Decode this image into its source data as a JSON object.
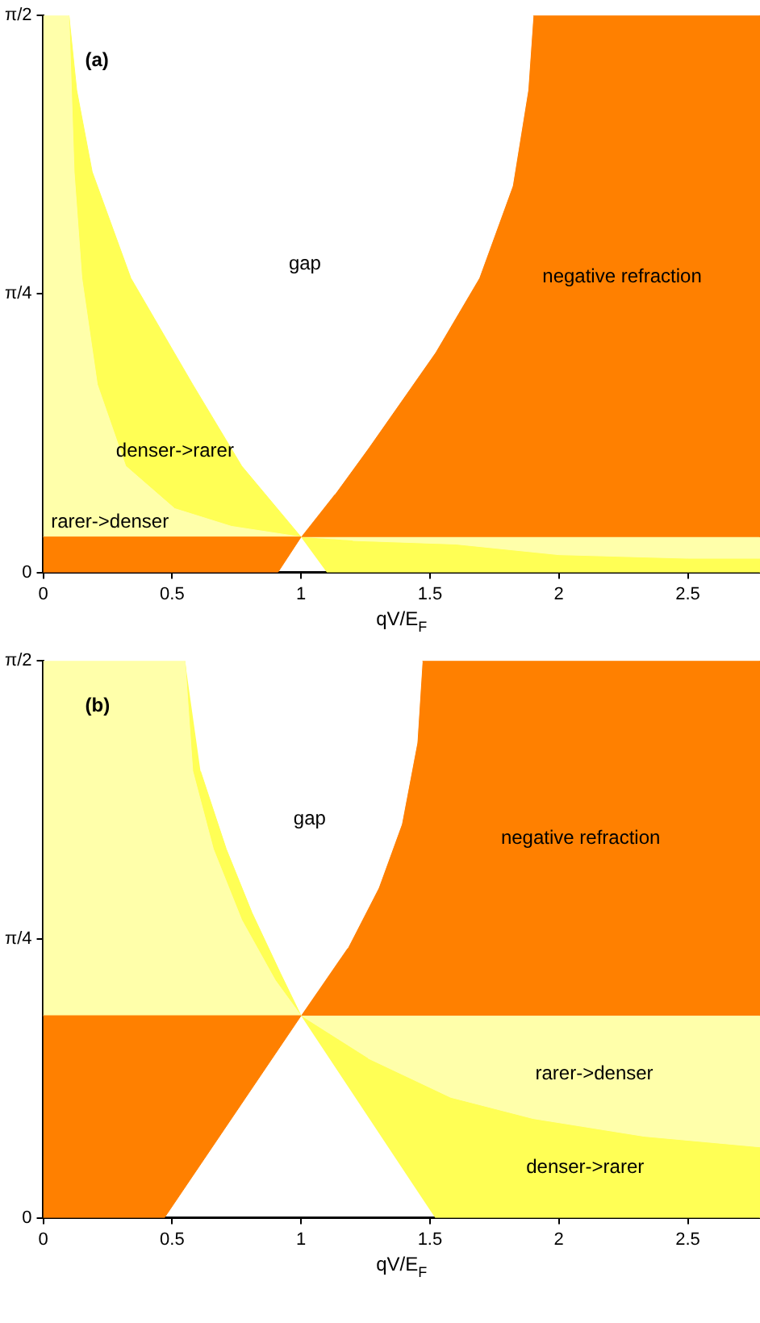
{
  "chart_data": [
    {
      "type": "area",
      "xlabel": "qV/E$_{F}$",
      "xlim": [
        0,
        2.78
      ],
      "ylim": [
        0,
        1.5708
      ],
      "xticks": [
        0,
        0.5,
        1,
        1.5,
        2,
        2.5
      ],
      "yticks": [
        {
          "value": 0,
          "label": "0"
        },
        {
          "value": 0.7854,
          "label": "π/4"
        },
        {
          "value": 1.5708,
          "label": "π/2"
        }
      ],
      "grid": false,
      "legend": false,
      "series": [
        {
          "color": "#ff8000",
          "x": [
            0,
            0.91,
            1,
            0
          ],
          "values": [
            0,
            0,
            0.1,
            0.1
          ]
        },
        {
          "name": "rarer->denser",
          "color": "#ffffaa",
          "x": [
            0,
            1,
            0.73,
            0.51,
            0.32,
            0.21,
            0.15,
            0.12,
            0.1,
            0
          ],
          "values": [
            0.1,
            0.1,
            0.13,
            0.18,
            0.3,
            0.53,
            0.83,
            1.13,
            1.57,
            1.57
          ]
        },
        {
          "name": "denser->rarer",
          "color": "#ffff55",
          "x": [
            0.1,
            0.12,
            0.15,
            0.21,
            0.32,
            0.51,
            0.73,
            1,
            0.77,
            0.58,
            0.34,
            0.19,
            0.13,
            0.1
          ],
          "values": [
            1.57,
            1.13,
            0.83,
            0.53,
            0.3,
            0.18,
            0.13,
            0.1,
            0.3,
            0.53,
            0.83,
            1.13,
            1.36,
            1.57
          ]
        },
        {
          "name": "gap",
          "color": "#ffffff",
          "x": [
            1,
            0.77,
            0.58,
            0.34,
            0.19,
            0.13,
            0.1,
            1.9,
            1.88,
            1.82,
            1.69,
            1.52,
            1.26,
            1.13
          ],
          "values": [
            0.1,
            0.3,
            0.53,
            0.83,
            1.13,
            1.36,
            1.57,
            1.57,
            1.36,
            1.09,
            0.83,
            0.62,
            0.35,
            0.22
          ]
        },
        {
          "name": "negative refraction",
          "color": "#ff8000",
          "x": [
            1,
            1.13,
            1.26,
            1.52,
            1.69,
            1.82,
            1.88,
            1.9,
            2.78,
            2.78
          ],
          "values": [
            0.1,
            0.22,
            0.35,
            0.62,
            0.83,
            1.09,
            1.36,
            1.57,
            1.57,
            0.1
          ]
        },
        {
          "color": "#ffffaa",
          "x": [
            1,
            2.78,
            2.78,
            2.5,
            2,
            1.6,
            1.2
          ],
          "values": [
            0.1,
            0.1,
            0.04,
            0.04,
            0.05,
            0.08,
            0.09
          ]
        },
        {
          "color": "#ffff55",
          "x": [
            1,
            1.2,
            1.6,
            2,
            2.5,
            2.78,
            2.78,
            1.1
          ],
          "values": [
            0.1,
            0.09,
            0.08,
            0.05,
            0.04,
            0.04,
            0,
            0
          ]
        }
      ],
      "annotations": [
        "(a)"
      ]
    },
    {
      "type": "area",
      "xlabel": "qV/E$_{F}$",
      "xlim": [
        0,
        2.78
      ],
      "ylim": [
        0,
        1.5708
      ],
      "xticks": [
        0,
        0.5,
        1,
        1.5,
        2,
        2.5
      ],
      "yticks": [
        {
          "value": 0,
          "label": "0"
        },
        {
          "value": 0.7854,
          "label": "π/4"
        },
        {
          "value": 1.5708,
          "label": "π/2"
        }
      ],
      "grid": false,
      "legend": false,
      "series": [
        {
          "color": "#ff8000",
          "x": [
            0,
            0.47,
            1,
            0
          ],
          "values": [
            0,
            0,
            0.57,
            0.57
          ]
        },
        {
          "color": "#ffffaa",
          "x": [
            0,
            1,
            0.9,
            0.77,
            0.66,
            0.58,
            0.55,
            0
          ],
          "values": [
            0.57,
            0.57,
            0.67,
            0.84,
            1.04,
            1.26,
            1.57,
            1.57
          ]
        },
        {
          "color": "#ffff55",
          "x": [
            0.55,
            0.58,
            0.66,
            0.77,
            0.9,
            1,
            0.92,
            0.81,
            0.71,
            0.61
          ],
          "values": [
            1.57,
            1.26,
            1.04,
            0.84,
            0.67,
            0.57,
            0.69,
            0.86,
            1.04,
            1.26
          ]
        },
        {
          "name": "gap",
          "color": "#ffffff",
          "x": [
            1,
            0.92,
            0.81,
            0.71,
            0.61,
            0.55,
            1.47,
            1.45,
            1.39,
            1.3,
            1.18
          ],
          "values": [
            0.57,
            0.69,
            0.86,
            1.04,
            1.26,
            1.57,
            1.57,
            1.34,
            1.11,
            0.93,
            0.76
          ]
        },
        {
          "name": "negative refraction",
          "color": "#ff8000",
          "x": [
            1,
            1.18,
            1.3,
            1.39,
            1.45,
            1.47,
            2.78,
            2.78
          ],
          "values": [
            0.57,
            0.76,
            0.93,
            1.11,
            1.34,
            1.57,
            1.57,
            0.57
          ]
        },
        {
          "name": "rarer->denser",
          "color": "#ffffaa",
          "x": [
            1,
            2.78,
            2.78,
            2.33,
            1.9,
            1.58,
            1.26
          ],
          "values": [
            0.57,
            0.57,
            0.2,
            0.23,
            0.28,
            0.34,
            0.45
          ]
        },
        {
          "name": "denser->rarer",
          "color": "#ffff55",
          "x": [
            1,
            1.26,
            1.58,
            1.9,
            2.33,
            2.78,
            2.78,
            1.52
          ],
          "values": [
            0.57,
            0.45,
            0.34,
            0.28,
            0.23,
            0.2,
            0,
            0
          ]
        }
      ],
      "annotations": [
        "(b)"
      ]
    }
  ]
}
